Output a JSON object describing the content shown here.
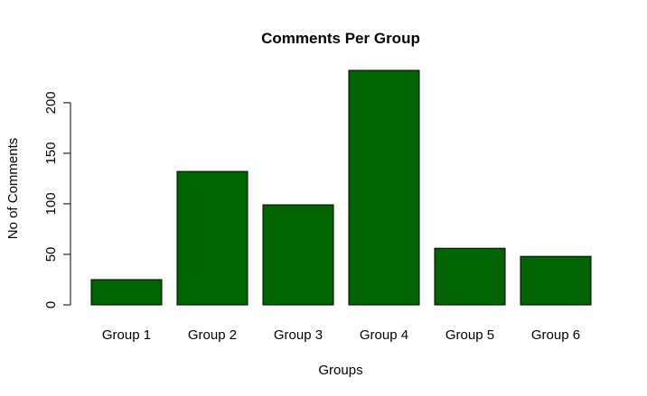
{
  "chart_data": {
    "type": "bar",
    "title": "Comments Per Group",
    "xlabel": "Groups",
    "ylabel": "No of Comments",
    "categories": [
      "Group 1",
      "Group 2",
      "Group 3",
      "Group 4",
      "Group 5",
      "Group 6"
    ],
    "values": [
      25,
      132,
      99,
      232,
      56,
      48
    ],
    "ylim": [
      0,
      232
    ],
    "y_ticks": [
      0,
      50,
      100,
      150,
      200
    ],
    "y_tick_labels": [
      "0",
      "50",
      "100",
      "150",
      "200"
    ],
    "bar_color": "#006400",
    "grid": false,
    "legend": "none"
  }
}
